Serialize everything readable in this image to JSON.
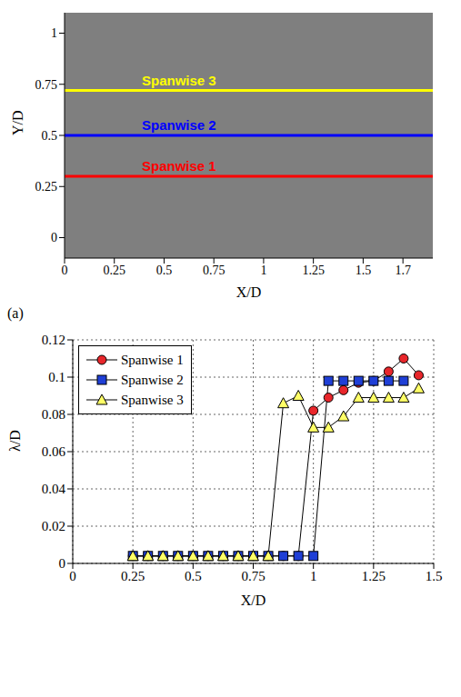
{
  "chart_data": [
    {
      "type": "line",
      "panel": "(a)",
      "xlabel": "X/D",
      "ylabel": "Y/D",
      "xlim": [
        0,
        1.85
      ],
      "ylim": [
        -0.1,
        1.1
      ],
      "xticks": [
        0,
        0.25,
        0.5,
        0.75,
        1,
        1.25,
        1.5,
        1.7
      ],
      "yticks": [
        0,
        0.25,
        0.5,
        0.75,
        1
      ],
      "grid": false,
      "series": [
        {
          "name": "Spanwise 3",
          "color": "#ffff00",
          "x": [
            0,
            1.85
          ],
          "values": [
            0.72,
            0.72
          ]
        },
        {
          "name": "Spanwise 2",
          "color": "#0000ff",
          "x": [
            0,
            1.85
          ],
          "values": [
            0.5,
            0.5
          ]
        },
        {
          "name": "Spanwise 1",
          "color": "#ff0000",
          "x": [
            0,
            1.85
          ],
          "values": [
            0.3,
            0.3
          ]
        }
      ]
    },
    {
      "type": "line",
      "xlabel": "X/D",
      "ylabel": "λ/D",
      "xlim": [
        0,
        1.5
      ],
      "ylim": [
        0,
        0.12
      ],
      "xticks": [
        0,
        0.25,
        0.5,
        0.75,
        1,
        1.25,
        1.5
      ],
      "yticks": [
        0,
        0.02,
        0.04,
        0.06,
        0.08,
        0.1,
        0.12
      ],
      "grid": true,
      "legend": "upper left",
      "x": [
        0.25,
        0.3125,
        0.375,
        0.4375,
        0.5,
        0.5625,
        0.625,
        0.6875,
        0.75,
        0.8125,
        0.875,
        0.9375,
        1.0,
        1.0625,
        1.125,
        1.1875,
        1.25,
        1.3125,
        1.375,
        1.4375
      ],
      "series": [
        {
          "name": "Spanwise 1",
          "color": "#e8262b",
          "marker": "circle",
          "values": [
            0.004,
            0.004,
            0.004,
            0.004,
            0.004,
            0.004,
            0.004,
            0.004,
            0.004,
            0.004,
            0.004,
            0.004,
            0.082,
            0.089,
            0.093,
            0.097,
            0.098,
            0.103,
            0.11,
            0.101
          ]
        },
        {
          "name": "Spanwise 2",
          "color": "#1f3fd6",
          "marker": "square",
          "values": [
            0.004,
            0.004,
            0.004,
            0.004,
            0.004,
            0.004,
            0.004,
            0.004,
            0.004,
            0.004,
            0.004,
            0.004,
            0.004,
            0.098,
            0.098,
            0.098,
            0.098,
            0.098,
            0.098,
            null
          ]
        },
        {
          "name": "Spanwise 3",
          "color": "#ffff66",
          "marker": "triangle",
          "values": [
            0.004,
            0.004,
            0.004,
            0.004,
            0.004,
            0.004,
            0.004,
            0.004,
            0.004,
            0.004,
            0.086,
            0.09,
            0.073,
            0.073,
            0.079,
            0.089,
            0.089,
            0.089,
            0.089,
            0.094
          ]
        }
      ]
    }
  ]
}
